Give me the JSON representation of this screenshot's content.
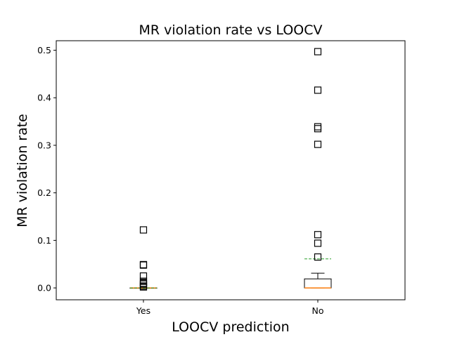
{
  "chart_data": {
    "type": "box",
    "title": "MR violation rate vs LOOCV",
    "xlabel": "LOOCV prediction",
    "ylabel": "MR violation rate",
    "categories": [
      "Yes",
      "No"
    ],
    "ylim": [
      -0.025,
      0.52
    ],
    "yticks": [
      0.0,
      0.1,
      0.2,
      0.3,
      0.4,
      0.5
    ],
    "ytick_labels": [
      "0.0",
      "0.1",
      "0.2",
      "0.3",
      "0.4",
      "0.5"
    ],
    "grid": false,
    "boxes": [
      {
        "category": "Yes",
        "q1": 0.0,
        "median": 0.0,
        "q3": 0.0,
        "whisker_low": 0.0,
        "whisker_high": 0.0,
        "mean": 0.0,
        "fliers": [
          0.122,
          0.049,
          0.048,
          0.025,
          0.014,
          0.01,
          0.008,
          0.004,
          0.002
        ]
      },
      {
        "category": "No",
        "q1": 0.0,
        "median": 0.0,
        "q3": 0.019,
        "whisker_low": 0.0,
        "whisker_high": 0.031,
        "mean": 0.061,
        "fliers": [
          0.497,
          0.416,
          0.339,
          0.335,
          0.302,
          0.112,
          0.094,
          0.065
        ]
      }
    ],
    "colors": {
      "box": "#000000",
      "median": "#ff7f0e",
      "mean": "#2ca02c",
      "flier": "#000000"
    }
  }
}
